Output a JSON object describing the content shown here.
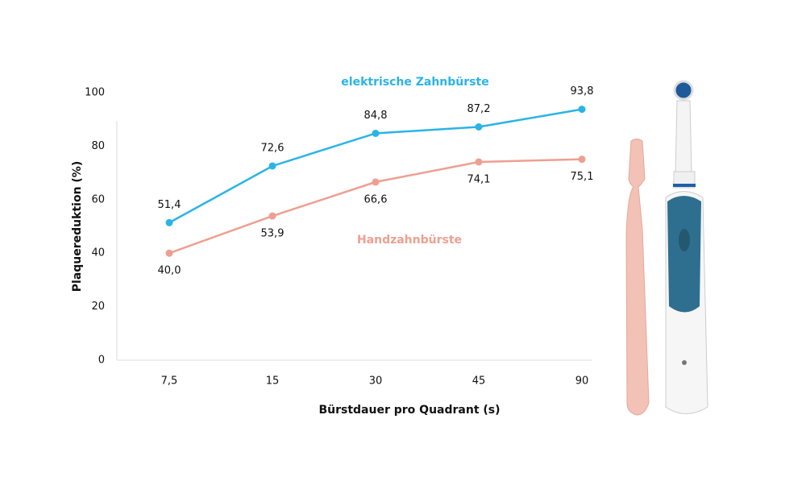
{
  "chart_data": {
    "type": "line",
    "categories": [
      "7,5",
      "15",
      "30",
      "45",
      "90"
    ],
    "x_label": "Bürstdauer pro Quadrant (s)",
    "y_label": "Plaquereduktion (%)",
    "ylim": [
      0,
      100
    ],
    "yticks": [
      0,
      20,
      40,
      60,
      80,
      100
    ],
    "series": [
      {
        "name": "elektrische Zahnbürste",
        "color": "#2ab4e6",
        "values": [
          51.4,
          72.6,
          84.8,
          87.2,
          93.8
        ],
        "value_labels": [
          "51,4",
          "72,6",
          "84,8",
          "87,2",
          "93,8"
        ]
      },
      {
        "name": "Handzahnbürste",
        "color": "#ee9f91",
        "values": [
          40.0,
          53.9,
          66.6,
          74.1,
          75.1
        ],
        "value_labels": [
          "40,0",
          "53,9",
          "66,6",
          "74,1",
          "75,1"
        ]
      }
    ]
  }
}
